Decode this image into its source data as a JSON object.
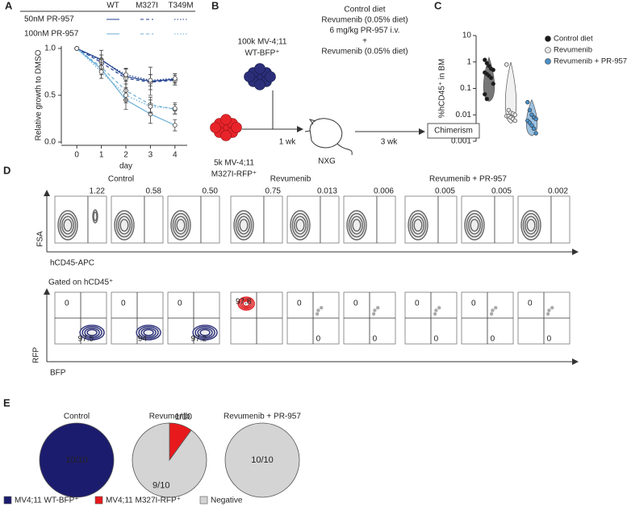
{
  "panel_labels": [
    "A",
    "B",
    "C",
    "D",
    "E"
  ],
  "chart_data": [
    {
      "type": "line",
      "legend": {
        "columns": [
          "WT",
          "M327I",
          "T349M"
        ],
        "rows": [
          "50nM PR-957",
          "100nM PR-957"
        ]
      },
      "x": [
        0,
        1,
        2,
        3,
        4
      ],
      "xlim": [
        -0.5,
        4.5
      ],
      "xticks": [
        0,
        1,
        2,
        3,
        4
      ],
      "xlabel": "day",
      "ylabel": "Relative growth to DMSO",
      "ylim": [
        0,
        1.0
      ],
      "yticks": [
        {
          "value": 0,
          "label": "0.0"
        },
        {
          "value": 0.5,
          "label": "0.5"
        },
        {
          "value": 1,
          "label": "1.0"
        }
      ],
      "series": [
        {
          "color": "#1f3f8f",
          "dash": "solid",
          "values": [
            1,
            0.88,
            0.7,
            0.65,
            0.67
          ],
          "errors": [
            0,
            0.1,
            0.08,
            0.15,
            0.06
          ]
        },
        {
          "color": "#1f3f8f",
          "dash": "dashed",
          "values": [
            1,
            0.85,
            0.68,
            0.64,
            0.66
          ],
          "errors": [
            0,
            0.08,
            0.1,
            0.08,
            0.05
          ]
        },
        {
          "color": "#1f3f8f",
          "dash": "dotted",
          "values": [
            1,
            0.87,
            0.72,
            0.66,
            0.68
          ],
          "errors": [
            0,
            0.06,
            0.07,
            0.06,
            0.05
          ]
        },
        {
          "color": "#6aaed6",
          "dash": "solid",
          "values": [
            1,
            0.78,
            0.45,
            0.3,
            0.18
          ],
          "errors": [
            0,
            0.1,
            0.1,
            0.1,
            0.06
          ]
        },
        {
          "color": "#6aaed6",
          "dash": "dashed",
          "values": [
            1,
            0.8,
            0.55,
            0.4,
            0.35
          ],
          "errors": [
            0,
            0.08,
            0.1,
            0.08,
            0.05
          ]
        },
        {
          "color": "#6aaed6",
          "dash": "dotted",
          "values": [
            1,
            0.75,
            0.5,
            0.38,
            0.36
          ],
          "errors": [
            0,
            0.07,
            0.08,
            0.07,
            0.06
          ]
        }
      ]
    },
    {
      "type": "scatter",
      "ylabel": "%hCD45⁺ in BM",
      "log_scale": true,
      "ylim": [
        0.001,
        10
      ],
      "yticks": [
        0.001,
        0.01,
        0.1,
        1,
        10
      ],
      "series": [
        {
          "name": "Control diet",
          "color": "#1a1a1a",
          "values": [
            1.2,
            0.9,
            0.7,
            0.55,
            0.5,
            0.4,
            0.35,
            0.3,
            0.25,
            0.15,
            0.06,
            0.04
          ]
        },
        {
          "name": "Revumenib",
          "color": "#e6e6e6",
          "values": [
            0.8,
            0.015,
            0.012,
            0.011,
            0.01,
            0.009,
            0.009,
            0.008,
            0.007,
            0.006
          ]
        },
        {
          "name": "Revumenib + PR-957",
          "color": "#4a90c8",
          "values": [
            0.03,
            0.015,
            0.01,
            0.008,
            0.007,
            0.006,
            0.005,
            0.004,
            0.003,
            0.002
          ]
        }
      ]
    },
    {
      "type": "pie",
      "categories": [
        "MV4;11 WT-BFP⁺",
        "MV4;11 M327I-RFP⁺",
        "Negative"
      ],
      "colors": [
        "#1c1c6e",
        "#e8191c",
        "#d4d4d4"
      ],
      "pies": [
        {
          "title": "Control",
          "values": [
            10,
            0,
            0
          ],
          "value_labels": [
            "10/10",
            null,
            null
          ]
        },
        {
          "title": "Revumenib",
          "values": [
            0,
            1,
            9
          ],
          "value_labels": [
            null,
            "1/10",
            "9/10"
          ]
        },
        {
          "title": "Revumenib + PR-957",
          "values": [
            0,
            0,
            10
          ],
          "value_labels": [
            null,
            null,
            "10/10"
          ]
        }
      ]
    }
  ],
  "diagram_b": {
    "wt_cells": [
      "100k MV-4;11",
      "WT-BFP⁺"
    ],
    "mutant_cells": [
      "5k MV-4;11",
      "M327I-RFP⁺"
    ],
    "first_interval": "1 wk",
    "mouse": "NXG",
    "treatments": [
      "Control diet",
      "Revumenib (0.05% diet)",
      "6 mg/kg PR-957 i.v.",
      "+",
      "Revumenib (0.05% diet)"
    ],
    "second_interval": "3 wk",
    "readout": "Chimerism"
  },
  "flow_d": {
    "groups": [
      "Control",
      "Revumenib",
      "Revumenib + PR-957"
    ],
    "y_axis": "FSA",
    "x_axis": "hCD45-APC",
    "row1_values": [
      "1.22",
      "0.58",
      "0.50",
      "0.75",
      "0.013",
      "0.006",
      "0.005",
      "0.005",
      "0.002"
    ],
    "gate_label": "Gated on hCD45⁺",
    "y_axis_2": "RFP",
    "x_axis_2": "BFP",
    "row2_values": [
      {
        "rfp": "0",
        "bfp": "97.5"
      },
      {
        "rfp": "0",
        "bfp": "94"
      },
      {
        "rfp": "0",
        "bfp": "97.2"
      },
      {
        "rfp": "97.8"
      },
      {
        "rfp": "0",
        "bfp": "0"
      },
      {
        "rfp": "0",
        "bfp": "0"
      },
      {
        "rfp": "0",
        "bfp": "0"
      },
      {
        "rfp": "0",
        "bfp": "0"
      },
      {
        "rfp": "0",
        "bfp": "0"
      }
    ]
  }
}
